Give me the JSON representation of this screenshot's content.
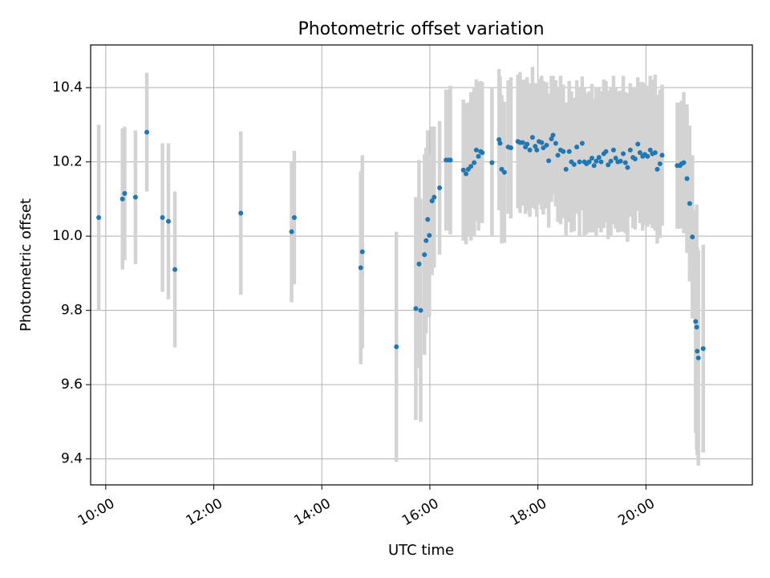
{
  "chart_data": {
    "type": "scatter",
    "title": "Photometric offset variation",
    "xlabel": "UTC time",
    "ylabel": "Photometric offset",
    "x_ticks": [
      "10:00",
      "12:00",
      "14:00",
      "16:00",
      "18:00",
      "20:00"
    ],
    "x_tick_hours": [
      10,
      12,
      14,
      16,
      18,
      20
    ],
    "y_ticks": [
      "9.4",
      "9.6",
      "9.8",
      "10.0",
      "10.2",
      "10.4"
    ],
    "y_tick_values": [
      9.4,
      9.6,
      9.8,
      10.0,
      10.2,
      10.4
    ],
    "xlim_hours": [
      9.72,
      21.97
    ],
    "ylim": [
      9.33,
      10.515
    ],
    "grid": true,
    "colors": {
      "marker": "#1f77b4",
      "errorbar": "#d3d3d3",
      "grid": "#b0b0b0"
    },
    "series": [
      {
        "x_hours": [
          9.87,
          10.31,
          10.35,
          10.55,
          10.76,
          11.05,
          11.16,
          11.28,
          12.5,
          13.44,
          13.49,
          14.72,
          14.75,
          15.38,
          15.74,
          15.8,
          15.83,
          15.9,
          15.93,
          15.96,
          15.99,
          16.04,
          16.08,
          16.18,
          16.3,
          16.34,
          16.38,
          16.62,
          16.67,
          16.71,
          16.76,
          16.82,
          16.86,
          16.9,
          16.94,
          16.97,
          17.15,
          17.28,
          17.3,
          17.33,
          17.38,
          17.45,
          17.5,
          17.63,
          17.67,
          17.72,
          17.77,
          17.8,
          17.85,
          17.9,
          17.95,
          17.98,
          18.02,
          18.07,
          18.1,
          18.16,
          18.2,
          18.25,
          18.28,
          18.33,
          18.37,
          18.42,
          18.47,
          18.52,
          18.58,
          18.62,
          18.67,
          18.72,
          18.77,
          18.82,
          18.86,
          18.9,
          18.95,
          19.0,
          19.04,
          19.08,
          19.13,
          19.17,
          19.22,
          19.26,
          19.3,
          19.35,
          19.4,
          19.44,
          19.48,
          19.53,
          19.58,
          19.62,
          19.66,
          19.71,
          19.76,
          19.8,
          19.85,
          19.89,
          19.94,
          19.98,
          20.03,
          20.08,
          20.12,
          20.17,
          20.21,
          20.26,
          20.3,
          20.58,
          20.63,
          20.66,
          20.7,
          20.76,
          20.81,
          20.86,
          20.92,
          20.94,
          20.95,
          20.97,
          21.06
        ],
        "y": [
          10.05,
          10.1,
          10.115,
          10.105,
          10.28,
          10.05,
          10.04,
          9.91,
          10.062,
          10.012,
          10.05,
          9.915,
          9.958,
          9.702,
          9.805,
          9.925,
          9.8,
          9.95,
          9.988,
          10.045,
          10.002,
          10.095,
          10.105,
          10.13,
          10.205,
          10.205,
          10.205,
          10.178,
          10.168,
          10.18,
          10.188,
          10.198,
          10.232,
          10.215,
          10.228,
          10.225,
          10.198,
          10.26,
          10.25,
          10.18,
          10.172,
          10.24,
          10.238,
          10.255,
          10.252,
          10.252,
          10.24,
          10.248,
          10.232,
          10.266,
          10.242,
          10.232,
          10.255,
          10.252,
          10.238,
          10.245,
          10.203,
          10.262,
          10.272,
          10.25,
          10.218,
          10.232,
          10.228,
          10.18,
          10.228,
          10.2,
          10.193,
          10.24,
          10.2,
          10.25,
          10.2,
          10.195,
          10.2,
          10.21,
          10.19,
          10.202,
          10.212,
          10.2,
          10.222,
          10.228,
          10.192,
          10.202,
          10.232,
          10.21,
          10.2,
          10.202,
          10.222,
          10.198,
          10.185,
          10.232,
          10.212,
          10.208,
          10.248,
          10.225,
          10.215,
          10.22,
          10.215,
          10.232,
          10.222,
          10.225,
          10.18,
          10.195,
          10.218,
          10.19,
          10.19,
          10.195,
          10.198,
          10.155,
          10.088,
          9.998,
          9.77,
          9.755,
          9.69,
          9.672,
          9.697
        ],
        "y_err": [
          0.25,
          0.19,
          0.18,
          0.18,
          0.16,
          0.2,
          0.21,
          0.21,
          0.22,
          0.19,
          0.18,
          0.26,
          0.26,
          0.31,
          0.3,
          0.28,
          0.3,
          0.27,
          0.25,
          0.24,
          0.22,
          0.2,
          0.19,
          0.18,
          0.19,
          0.19,
          0.2,
          0.19,
          0.19,
          0.18,
          0.2,
          0.2,
          0.19,
          0.2,
          0.19,
          0.19,
          0.2,
          0.19,
          0.18,
          0.2,
          0.19,
          0.18,
          0.19,
          0.18,
          0.19,
          0.17,
          0.18,
          0.18,
          0.18,
          0.19,
          0.17,
          0.18,
          0.17,
          0.18,
          0.18,
          0.17,
          0.18,
          0.17,
          0.16,
          0.17,
          0.18,
          0.2,
          0.18,
          0.18,
          0.19,
          0.19,
          0.18,
          0.18,
          0.2,
          0.18,
          0.2,
          0.19,
          0.19,
          0.2,
          0.18,
          0.2,
          0.19,
          0.19,
          0.2,
          0.19,
          0.2,
          0.2,
          0.2,
          0.19,
          0.19,
          0.19,
          0.21,
          0.19,
          0.2,
          0.18,
          0.19,
          0.19,
          0.18,
          0.19,
          0.2,
          0.19,
          0.19,
          0.2,
          0.2,
          0.21,
          0.2,
          0.2,
          0.19,
          0.17,
          0.17,
          0.17,
          0.19,
          0.2,
          0.21,
          0.22,
          0.3,
          0.33,
          0.28,
          0.29,
          0.28
        ]
      }
    ]
  }
}
